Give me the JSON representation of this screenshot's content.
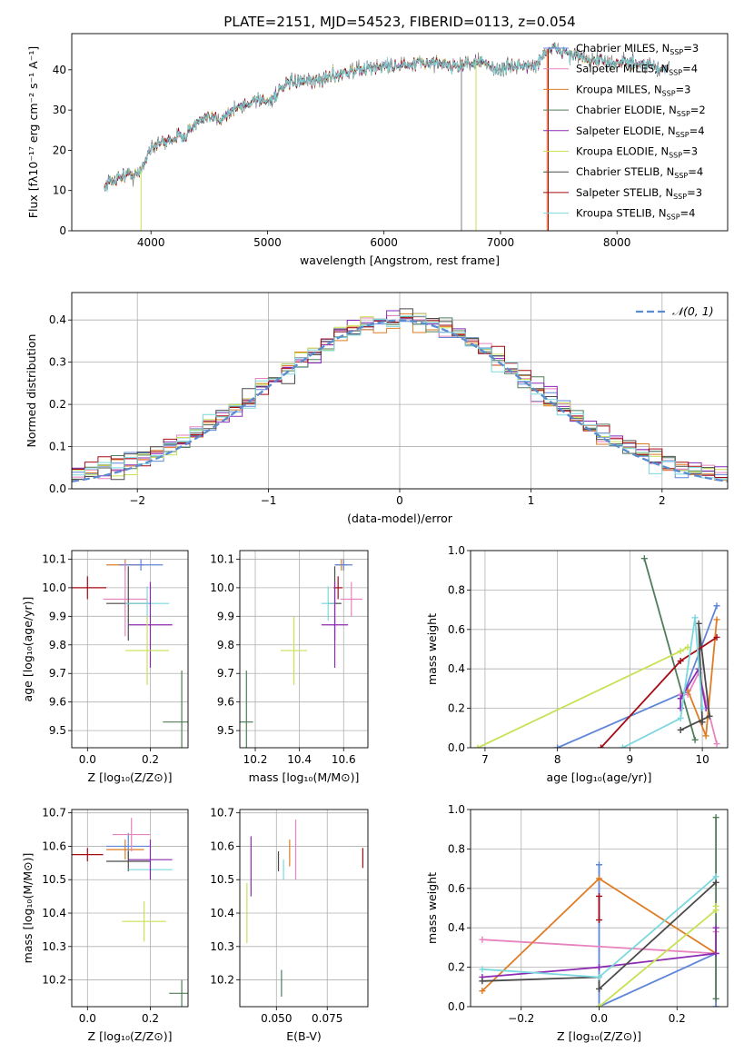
{
  "title": "PLATE=2151, MJD=54523, FIBERID=0113, z=0.054",
  "colors": {
    "chabrier_miles": "#5f86d8",
    "salpeter_miles": "#e783bf",
    "kroupa_miles": "#de7d24",
    "chabrier_elodie": "#4f7d5a",
    "salpeter_elodie": "#8b2ab3",
    "kroupa_elodie": "#c7e256",
    "chabrier_stelib": "#4a4a4a",
    "salpeter_stelib": "#a50b14",
    "kroupa_stelib": "#7ad8de",
    "data": "#7f7f7f",
    "normal": "#5b8bd0",
    "grid": "#b0b0b0"
  },
  "chart_data": [
    {
      "id": "spectrum",
      "type": "line",
      "xlabel": "wavelength [Angstrom, rest frame]",
      "ylabel": "Flux [fλ10⁻¹⁷ erg cm⁻² s⁻¹ A⁻¹]",
      "xlim": [
        3320,
        8950
      ],
      "ylim": [
        0,
        49
      ],
      "xticks": [
        "4000",
        "5000",
        "6000",
        "7000",
        "8000"
      ],
      "yticks": [
        "0",
        "10",
        "20",
        "30",
        "40"
      ],
      "legend_position": "right",
      "legend": [
        {
          "label": "Chabrier MILES, N",
          "sub": "SSP",
          "tail": "=3",
          "color": "chabrier_miles"
        },
        {
          "label": "Salpeter MILES, N",
          "sub": "SSP",
          "tail": "=4",
          "color": "salpeter_miles"
        },
        {
          "label": "Kroupa MILES, N",
          "sub": "SSP",
          "tail": "=3",
          "color": "kroupa_miles"
        },
        {
          "label": "Chabrier ELODIE, N",
          "sub": "SSP",
          "tail": "=2",
          "color": "chabrier_elodie"
        },
        {
          "label": "Salpeter ELODIE, N",
          "sub": "SSP",
          "tail": "=4",
          "color": "salpeter_elodie"
        },
        {
          "label": "Kroupa ELODIE, N",
          "sub": "SSP",
          "tail": "=3",
          "color": "kroupa_elodie"
        },
        {
          "label": "Chabrier STELIB, N",
          "sub": "SSP",
          "tail": "=4",
          "color": "chabrier_stelib"
        },
        {
          "label": "Salpeter STELIB, N",
          "sub": "SSP",
          "tail": "=3",
          "color": "salpeter_stelib"
        },
        {
          "label": "Kroupa STELIB, N",
          "sub": "SSP",
          "tail": "=4",
          "color": "kroupa_stelib"
        }
      ],
      "continuum": {
        "x": [
          3600,
          3700,
          3800,
          3900,
          4000,
          4100,
          4200,
          4300,
          4400,
          4500,
          4600,
          4700,
          4800,
          4900,
          5000,
          5200,
          5400,
          5600,
          5800,
          6000,
          6200,
          6400,
          6600,
          6800,
          6900,
          7000,
          7100,
          7200,
          7300,
          7400,
          7500,
          7600,
          7700,
          7800,
          7900,
          8000,
          8100,
          8200,
          8300,
          8400,
          8450,
          8500,
          8600,
          8700,
          8800,
          8900
        ],
        "y": [
          11,
          13,
          14,
          14,
          21,
          22,
          23,
          24,
          27,
          28,
          28,
          30,
          31,
          33,
          32,
          37,
          37,
          39,
          40,
          41,
          41,
          42,
          41,
          42,
          41,
          40,
          41,
          41,
          41,
          45,
          45,
          44,
          43,
          42,
          42,
          42,
          42,
          41,
          41,
          40,
          41,
          37,
          37,
          37,
          37,
          37
        ]
      },
      "data_extent": [
        3600,
        8450
      ]
    },
    {
      "id": "residuals",
      "type": "bar",
      "xlabel": "(data-model)/error",
      "ylabel": "Normed distribution",
      "xlim": [
        -2.5,
        2.5
      ],
      "ylim": [
        0,
        0.465
      ],
      "xticks": [
        "−2",
        "−1",
        "0",
        "1",
        "2"
      ],
      "yticks": [
        "0.0",
        "0.1",
        "0.2",
        "0.3",
        "0.4"
      ],
      "bin_width": 0.1,
      "legend_position": "top-right",
      "legend_label": "𝒩(0, 1)"
    },
    {
      "id": "age-vs-z",
      "type": "scatter",
      "xlabel": "Z [log₁₀(Z/Z⊙)]",
      "ylabel": "age  [log₁₀(age/yr)]",
      "xlim": [
        -0.05,
        0.32
      ],
      "ylim": [
        9.44,
        10.13
      ],
      "xticks": [
        "0.0",
        "0.2"
      ],
      "yticks": [
        "9.5",
        "9.6",
        "9.7",
        "9.8",
        "9.9",
        "10.0",
        "10.1"
      ],
      "points": [
        {
          "color": "salpeter_stelib",
          "x": 0.0,
          "xerr": 0.06,
          "y": 10.0,
          "yerr": 0.04
        },
        {
          "color": "kroupa_miles",
          "x": 0.12,
          "xerr": 0.06,
          "y": 10.08,
          "yerr": 0.02
        },
        {
          "color": "chabrier_miles",
          "x": 0.17,
          "xerr": 0.07,
          "y": 10.08,
          "yerr": 0.02
        },
        {
          "color": "salpeter_miles",
          "x": 0.12,
          "xerr": 0.07,
          "y": 9.96,
          "yerr": 0.13
        },
        {
          "color": "chabrier_stelib",
          "x": 0.13,
          "xerr": 0.07,
          "y": 9.945,
          "yerr": 0.13
        },
        {
          "color": "kroupa_stelib",
          "x": 0.19,
          "xerr": 0.07,
          "y": 9.945,
          "yerr": 0.06
        },
        {
          "color": "salpeter_elodie",
          "x": 0.2,
          "xerr": 0.07,
          "y": 9.87,
          "yerr": 0.15
        },
        {
          "color": "kroupa_elodie",
          "x": 0.19,
          "xerr": 0.07,
          "y": 9.78,
          "yerr": 0.12
        },
        {
          "color": "chabrier_elodie",
          "x": 0.3,
          "xerr": 0.06,
          "y": 9.53,
          "yerr": 0.18
        }
      ]
    },
    {
      "id": "age-vs-mass",
      "type": "scatter",
      "xlabel": "mass [log₁₀(M/M⊙)]",
      "ylabel": "",
      "xlim": [
        10.13,
        10.71
      ],
      "ylim": [
        9.44,
        10.13
      ],
      "xticks": [
        "10.2",
        "10.4",
        "10.6"
      ],
      "yticks": [
        "9.5",
        "9.6",
        "9.7",
        "9.8",
        "9.9",
        "10.0",
        "10.1"
      ],
      "points": [
        {
          "color": "salpeter_stelib",
          "x": 10.575,
          "xerr": 0.02,
          "y": 10.0,
          "yerr": 0.04
        },
        {
          "color": "kroupa_miles",
          "x": 10.59,
          "xerr": 0.03,
          "y": 10.08,
          "yerr": 0.02
        },
        {
          "color": "chabrier_miles",
          "x": 10.6,
          "xerr": 0.04,
          "y": 10.08,
          "yerr": 0.02
        },
        {
          "color": "salpeter_miles",
          "x": 10.635,
          "xerr": 0.05,
          "y": 9.96,
          "yerr": 0.06
        },
        {
          "color": "chabrier_stelib",
          "x": 10.56,
          "xerr": 0.03,
          "y": 9.945,
          "yerr": 0.13
        },
        {
          "color": "kroupa_stelib",
          "x": 10.53,
          "xerr": 0.03,
          "y": 9.945,
          "yerr": 0.06
        },
        {
          "color": "salpeter_elodie",
          "x": 10.56,
          "xerr": 0.06,
          "y": 9.87,
          "yerr": 0.15
        },
        {
          "color": "kroupa_elodie",
          "x": 10.375,
          "xerr": 0.06,
          "y": 9.78,
          "yerr": 0.12
        },
        {
          "color": "chabrier_elodie",
          "x": 10.16,
          "xerr": 0.03,
          "y": 9.53,
          "yerr": 0.18
        }
      ]
    },
    {
      "id": "weight-vs-age",
      "type": "line",
      "xlabel": "age  [log₁₀(age/yr)]",
      "ylabel": "mass weight",
      "xlim": [
        6.8,
        10.35
      ],
      "ylim": [
        0,
        1
      ],
      "xticks": [
        "7",
        "8",
        "9",
        "10"
      ],
      "yticks": [
        "0.0",
        "0.2",
        "0.4",
        "0.6",
        "0.8",
        "1.0"
      ],
      "series": [
        {
          "color": "chabrier_miles",
          "x": [
            10.2,
            9.75,
            8.0
          ],
          "y": [
            0.72,
            0.28,
            0.0
          ]
        },
        {
          "color": "salpeter_miles",
          "x": [
            10.2,
            9.95,
            9.8,
            9.7
          ],
          "y": [
            0.02,
            0.38,
            0.27,
            0.27
          ]
        },
        {
          "color": "kroupa_miles",
          "x": [
            10.2,
            10.05,
            9.8
          ],
          "y": [
            0.65,
            0.06,
            0.29
          ]
        },
        {
          "color": "chabrier_elodie",
          "x": [
            9.9,
            9.2
          ],
          "y": [
            0.04,
            0.96
          ]
        },
        {
          "color": "salpeter_elodie",
          "x": [
            10.05,
            9.95,
            9.7,
            9.7
          ],
          "y": [
            0.2,
            0.4,
            0.25,
            0.2
          ]
        },
        {
          "color": "kroupa_elodie",
          "x": [
            6.9,
            9.7,
            9.8
          ],
          "y": [
            0.0,
            0.49,
            0.51
          ]
        },
        {
          "color": "chabrier_stelib",
          "x": [
            9.7,
            10.1,
            9.95,
            10.0
          ],
          "y": [
            0.09,
            0.16,
            0.63,
            0.13
          ]
        },
        {
          "color": "salpeter_stelib",
          "x": [
            8.6,
            9.7,
            10.2
          ],
          "y": [
            0.0,
            0.44,
            0.56
          ]
        },
        {
          "color": "kroupa_stelib",
          "x": [
            8.9,
            9.7,
            9.9,
            10.0
          ],
          "y": [
            0.0,
            0.15,
            0.66,
            0.2
          ]
        }
      ]
    },
    {
      "id": "mass-vs-z",
      "type": "scatter",
      "xlabel": "Z [log₁₀(Z/Z⊙)]",
      "ylabel": "mass [log₁₀(M/M⊙)]",
      "xlim": [
        -0.05,
        0.32
      ],
      "ylim": [
        10.12,
        10.71
      ],
      "xticks": [
        "0.0",
        "0.2"
      ],
      "yticks": [
        "10.2",
        "10.3",
        "10.4",
        "10.5",
        "10.6",
        "10.7"
      ],
      "points": [
        {
          "color": "salpeter_stelib",
          "x": 0.0,
          "xerr": 0.05,
          "y": 10.575,
          "yerr": 0.02
        },
        {
          "color": "kroupa_miles",
          "x": 0.12,
          "xerr": 0.06,
          "y": 10.59,
          "yerr": 0.03
        },
        {
          "color": "chabrier_miles",
          "x": 0.13,
          "xerr": 0.07,
          "y": 10.6,
          "yerr": 0.04
        },
        {
          "color": "salpeter_miles",
          "x": 0.14,
          "xerr": 0.06,
          "y": 10.635,
          "yerr": 0.05
        },
        {
          "color": "chabrier_stelib",
          "x": 0.13,
          "xerr": 0.07,
          "y": 10.555,
          "yerr": 0.03
        },
        {
          "color": "kroupa_stelib",
          "x": 0.2,
          "xerr": 0.07,
          "y": 10.53,
          "yerr": 0.03
        },
        {
          "color": "salpeter_elodie",
          "x": 0.2,
          "xerr": 0.07,
          "y": 10.56,
          "yerr": 0.06
        },
        {
          "color": "kroupa_elodie",
          "x": 0.18,
          "xerr": 0.07,
          "y": 10.375,
          "yerr": 0.06
        },
        {
          "color": "chabrier_elodie",
          "x": 0.3,
          "xerr": 0.04,
          "y": 10.16,
          "yerr": 0.04
        }
      ]
    },
    {
      "id": "mass-vs-ebv",
      "type": "scatter",
      "xlabel": "E(B-V)",
      "ylabel": "",
      "xlim": [
        0.032,
        0.095
      ],
      "ylim": [
        10.12,
        10.71
      ],
      "xticks": [
        "0.050",
        "0.075"
      ],
      "yticks": [
        "10.2",
        "10.3",
        "10.4",
        "10.5",
        "10.6",
        "10.7"
      ],
      "points": [
        {
          "color": "kroupa_elodie",
          "x": 0.0355,
          "xerr": 0,
          "y": 10.4,
          "yerr": 0.09
        },
        {
          "color": "salpeter_elodie",
          "x": 0.0375,
          "xerr": 0,
          "y": 10.54,
          "yerr": 0.09
        },
        {
          "color": "chabrier_stelib",
          "x": 0.051,
          "xerr": 0,
          "y": 10.555,
          "yerr": 0.03
        },
        {
          "color": "chabrier_elodie",
          "x": 0.0525,
          "xerr": 0,
          "y": 10.19,
          "yerr": 0.04
        },
        {
          "color": "kroupa_stelib",
          "x": 0.0535,
          "xerr": 0,
          "y": 10.53,
          "yerr": 0.03
        },
        {
          "color": "kroupa_miles",
          "x": 0.0565,
          "xerr": 0,
          "y": 10.58,
          "yerr": 0.04
        },
        {
          "color": "salpeter_miles",
          "x": 0.0595,
          "xerr": 0,
          "y": 10.59,
          "yerr": 0.09
        },
        {
          "color": "salpeter_stelib",
          "x": 0.0925,
          "xerr": 0,
          "y": 10.565,
          "yerr": 0.03
        }
      ]
    },
    {
      "id": "weight-vs-z",
      "type": "line",
      "xlabel": "Z [log₁₀(Z/Z⊙)]",
      "ylabel": "mass weight",
      "xlim": [
        -0.33,
        0.33
      ],
      "ylim": [
        0,
        1
      ],
      "xticks": [
        "−0.2",
        "0.0",
        "0.2"
      ],
      "yticks": [
        "0.0",
        "0.2",
        "0.4",
        "0.6",
        "0.8",
        "1.0"
      ],
      "series": [
        {
          "color": "chabrier_miles",
          "x": [
            0.0,
            0.0,
            0.3,
            0.3
          ],
          "y": [
            0.72,
            0.0,
            0.27,
            0.0
          ]
        },
        {
          "color": "salpeter_miles",
          "x": [
            -0.3,
            0.3,
            0.3
          ],
          "y": [
            0.34,
            0.27,
            0.38
          ]
        },
        {
          "color": "kroupa_miles",
          "x": [
            -0.3,
            0.0,
            0.3
          ],
          "y": [
            0.08,
            0.65,
            0.27
          ]
        },
        {
          "color": "chabrier_elodie",
          "x": [
            0.3,
            0.3
          ],
          "y": [
            0.04,
            0.96
          ]
        },
        {
          "color": "salpeter_elodie",
          "x": [
            -0.3,
            0.0,
            0.3,
            0.3
          ],
          "y": [
            0.15,
            0.2,
            0.27,
            0.4
          ]
        },
        {
          "color": "kroupa_elodie",
          "x": [
            0.0,
            0.3,
            0.3
          ],
          "y": [
            0.0,
            0.49,
            0.51
          ]
        },
        {
          "color": "chabrier_stelib",
          "x": [
            -0.3,
            0.0,
            0.0,
            0.3
          ],
          "y": [
            0.13,
            0.15,
            0.09,
            0.63
          ]
        },
        {
          "color": "salpeter_stelib",
          "x": [
            0.0,
            0.0
          ],
          "y": [
            0.44,
            0.56
          ]
        },
        {
          "color": "kroupa_stelib",
          "x": [
            -0.3,
            0.0,
            0.3
          ],
          "y": [
            0.19,
            0.15,
            0.66
          ]
        }
      ]
    }
  ]
}
